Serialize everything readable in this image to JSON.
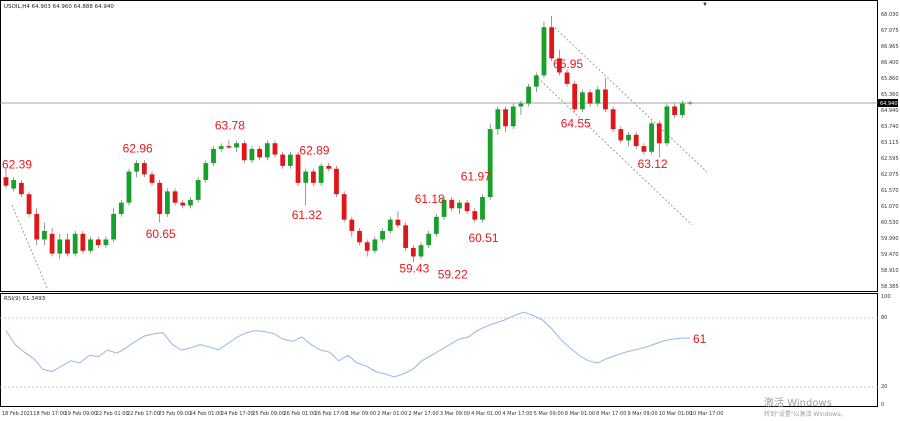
{
  "chart_header": "USOIL,H4  64.903 64.960 64.888 64.940",
  "rsi_header": "RSI(9) 61.3493",
  "current_price_label": "64.940",
  "rsi_value_label": "61",
  "price_axis": {
    "ticks": [
      "68.030",
      "67.075",
      "66.965",
      "66.400",
      "65.860",
      "65.360",
      "64.940",
      "63.740",
      "63.115",
      "62.595",
      "62.075",
      "61.570",
      "61.070",
      "60.530",
      "59.990",
      "59.470",
      "58.910",
      "58.385"
    ]
  },
  "rsi_axis": {
    "ticks": [
      "100",
      "80",
      "20",
      "0"
    ]
  },
  "time_axis": {
    "ticks": [
      "18 Feb 2021",
      "18 Feb 17:00",
      "19 Feb 09:00",
      "22 Feb 01:00",
      "22 Feb 17:00",
      "23 Feb 09:00",
      "24 Feb 01:00",
      "24 Feb 17:00",
      "25 Feb 09:00",
      "26 Feb 01:00",
      "26 Feb 17:00",
      "1 Mar 09:00",
      "2 Mar 01:00",
      "2 Mar 17:00",
      "3 Mar 09:00",
      "4 Mar 01:00",
      "4 Mar 17:00",
      "5 Mar 09:00",
      "8 Mar 01:00",
      "8 Mar 17:00",
      "9 Mar 09:00",
      "10 Mar 01:00",
      "10 Mar 17:00"
    ]
  },
  "annotations": [
    "62.39",
    "62.96",
    "60.65",
    "63.78",
    "61.32",
    "62.89",
    "59.43",
    "61.18",
    "59.22",
    "61.97",
    "60.51",
    "65.95",
    "64.55",
    "63.12"
  ],
  "watermark": {
    "line1": "激活 Windows",
    "line2": "转到\"设置\"以激活 Windows。"
  },
  "colors": {
    "bull": "#19a02a",
    "bear": "#e0161b",
    "rsi_line": "#8fb8e6",
    "annotation": "#e8191d"
  },
  "chart_data": {
    "type": "candlestick",
    "symbol": "USOIL",
    "timeframe": "H4",
    "ylim": [
      58.385,
      68.35
    ],
    "candles": [
      {
        "o": 62.3,
        "h": 62.6,
        "l": 61.9,
        "c": 62.0
      },
      {
        "o": 61.9,
        "h": 62.3,
        "l": 61.8,
        "c": 62.2
      },
      {
        "o": 62.1,
        "h": 62.2,
        "l": 61.6,
        "c": 61.7
      },
      {
        "o": 61.7,
        "h": 61.8,
        "l": 60.9,
        "c": 61.0
      },
      {
        "o": 61.0,
        "h": 61.2,
        "l": 59.9,
        "c": 60.1
      },
      {
        "o": 60.1,
        "h": 60.7,
        "l": 59.9,
        "c": 60.4
      },
      {
        "o": 60.3,
        "h": 60.5,
        "l": 59.5,
        "c": 59.6
      },
      {
        "o": 59.6,
        "h": 60.3,
        "l": 59.4,
        "c": 60.1
      },
      {
        "o": 60.1,
        "h": 60.3,
        "l": 59.5,
        "c": 59.6
      },
      {
        "o": 59.6,
        "h": 60.4,
        "l": 59.5,
        "c": 60.3
      },
      {
        "o": 60.3,
        "h": 60.4,
        "l": 59.6,
        "c": 59.7
      },
      {
        "o": 59.7,
        "h": 60.2,
        "l": 59.6,
        "c": 60.1
      },
      {
        "o": 60.1,
        "h": 60.2,
        "l": 59.8,
        "c": 59.9
      },
      {
        "o": 59.9,
        "h": 60.2,
        "l": 59.8,
        "c": 60.1
      },
      {
        "o": 60.1,
        "h": 61.2,
        "l": 60.0,
        "c": 61.0
      },
      {
        "o": 61.0,
        "h": 61.5,
        "l": 60.9,
        "c": 61.4
      },
      {
        "o": 61.4,
        "h": 62.6,
        "l": 61.3,
        "c": 62.5
      },
      {
        "o": 62.5,
        "h": 62.9,
        "l": 62.3,
        "c": 62.8
      },
      {
        "o": 62.8,
        "h": 62.9,
        "l": 62.3,
        "c": 62.4
      },
      {
        "o": 62.4,
        "h": 62.5,
        "l": 62.0,
        "c": 62.1
      },
      {
        "o": 62.1,
        "h": 62.2,
        "l": 60.7,
        "c": 61.0
      },
      {
        "o": 61.0,
        "h": 61.9,
        "l": 60.9,
        "c": 61.8
      },
      {
        "o": 61.8,
        "h": 61.9,
        "l": 61.3,
        "c": 61.4
      },
      {
        "o": 61.4,
        "h": 61.5,
        "l": 61.2,
        "c": 61.3
      },
      {
        "o": 61.3,
        "h": 61.6,
        "l": 61.2,
        "c": 61.5
      },
      {
        "o": 61.5,
        "h": 62.3,
        "l": 61.4,
        "c": 62.2
      },
      {
        "o": 62.2,
        "h": 62.9,
        "l": 62.1,
        "c": 62.8
      },
      {
        "o": 62.8,
        "h": 63.4,
        "l": 62.7,
        "c": 63.3
      },
      {
        "o": 63.3,
        "h": 63.5,
        "l": 63.2,
        "c": 63.4
      },
      {
        "o": 63.4,
        "h": 63.6,
        "l": 63.3,
        "c": 63.35
      },
      {
        "o": 63.35,
        "h": 63.6,
        "l": 63.2,
        "c": 63.5
      },
      {
        "o": 63.5,
        "h": 63.6,
        "l": 62.8,
        "c": 62.9
      },
      {
        "o": 62.9,
        "h": 63.4,
        "l": 62.8,
        "c": 63.3
      },
      {
        "o": 63.3,
        "h": 63.4,
        "l": 62.9,
        "c": 63.0
      },
      {
        "o": 63.0,
        "h": 63.6,
        "l": 62.9,
        "c": 63.5
      },
      {
        "o": 63.5,
        "h": 63.6,
        "l": 63.0,
        "c": 63.1
      },
      {
        "o": 63.1,
        "h": 63.2,
        "l": 62.6,
        "c": 62.7
      },
      {
        "o": 62.7,
        "h": 63.2,
        "l": 62.6,
        "c": 63.1
      },
      {
        "o": 63.1,
        "h": 63.2,
        "l": 62.0,
        "c": 62.1
      },
      {
        "o": 62.1,
        "h": 62.6,
        "l": 61.3,
        "c": 62.5
      },
      {
        "o": 62.5,
        "h": 62.6,
        "l": 62.0,
        "c": 62.1
      },
      {
        "o": 62.1,
        "h": 62.8,
        "l": 62.0,
        "c": 62.7
      },
      {
        "o": 62.7,
        "h": 62.8,
        "l": 62.5,
        "c": 62.6
      },
      {
        "o": 62.6,
        "h": 62.7,
        "l": 61.6,
        "c": 61.7
      },
      {
        "o": 61.7,
        "h": 61.8,
        "l": 60.7,
        "c": 60.8
      },
      {
        "o": 60.8,
        "h": 60.9,
        "l": 60.2,
        "c": 60.4
      },
      {
        "o": 60.4,
        "h": 60.5,
        "l": 59.9,
        "c": 60.0
      },
      {
        "o": 60.0,
        "h": 60.1,
        "l": 59.5,
        "c": 59.7
      },
      {
        "o": 59.7,
        "h": 60.2,
        "l": 59.6,
        "c": 60.1
      },
      {
        "o": 60.1,
        "h": 60.5,
        "l": 60.0,
        "c": 60.4
      },
      {
        "o": 60.4,
        "h": 60.9,
        "l": 60.3,
        "c": 60.8
      },
      {
        "o": 60.8,
        "h": 61.1,
        "l": 60.5,
        "c": 60.6
      },
      {
        "o": 60.6,
        "h": 60.7,
        "l": 59.7,
        "c": 59.8
      },
      {
        "o": 59.8,
        "h": 59.9,
        "l": 59.3,
        "c": 59.5
      },
      {
        "o": 59.5,
        "h": 60.0,
        "l": 59.4,
        "c": 59.9
      },
      {
        "o": 59.9,
        "h": 60.4,
        "l": 59.8,
        "c": 60.3
      },
      {
        "o": 60.3,
        "h": 61.0,
        "l": 60.2,
        "c": 60.9
      },
      {
        "o": 60.9,
        "h": 61.6,
        "l": 60.8,
        "c": 61.5
      },
      {
        "o": 61.5,
        "h": 61.6,
        "l": 61.1,
        "c": 61.2
      },
      {
        "o": 61.2,
        "h": 61.5,
        "l": 61.0,
        "c": 61.4
      },
      {
        "o": 61.4,
        "h": 61.5,
        "l": 61.0,
        "c": 61.1
      },
      {
        "o": 61.1,
        "h": 61.2,
        "l": 60.7,
        "c": 60.8
      },
      {
        "o": 60.8,
        "h": 61.7,
        "l": 60.7,
        "c": 61.6
      },
      {
        "o": 61.6,
        "h": 64.2,
        "l": 61.5,
        "c": 64.0
      },
      {
        "o": 64.0,
        "h": 64.8,
        "l": 63.8,
        "c": 64.7
      },
      {
        "o": 64.7,
        "h": 64.8,
        "l": 63.9,
        "c": 64.1
      },
      {
        "o": 64.1,
        "h": 64.9,
        "l": 64.0,
        "c": 64.8
      },
      {
        "o": 64.8,
        "h": 65.0,
        "l": 64.5,
        "c": 64.9
      },
      {
        "o": 64.9,
        "h": 65.6,
        "l": 64.8,
        "c": 65.5
      },
      {
        "o": 65.5,
        "h": 66.0,
        "l": 65.3,
        "c": 65.9
      },
      {
        "o": 65.9,
        "h": 67.8,
        "l": 65.8,
        "c": 67.6
      },
      {
        "o": 67.6,
        "h": 68.0,
        "l": 66.4,
        "c": 66.5
      },
      {
        "o": 66.5,
        "h": 66.8,
        "l": 65.9,
        "c": 66.0
      },
      {
        "o": 66.0,
        "h": 66.1,
        "l": 65.5,
        "c": 65.6
      },
      {
        "o": 65.6,
        "h": 65.7,
        "l": 64.6,
        "c": 64.7
      },
      {
        "o": 64.7,
        "h": 65.4,
        "l": 64.6,
        "c": 65.3
      },
      {
        "o": 65.3,
        "h": 65.4,
        "l": 64.8,
        "c": 64.9
      },
      {
        "o": 64.9,
        "h": 65.5,
        "l": 64.8,
        "c": 65.4
      },
      {
        "o": 65.4,
        "h": 65.8,
        "l": 64.6,
        "c": 64.7
      },
      {
        "o": 64.7,
        "h": 64.8,
        "l": 63.9,
        "c": 64.0
      },
      {
        "o": 64.0,
        "h": 64.1,
        "l": 63.5,
        "c": 63.6
      },
      {
        "o": 63.6,
        "h": 63.9,
        "l": 63.4,
        "c": 63.8
      },
      {
        "o": 63.8,
        "h": 63.9,
        "l": 63.3,
        "c": 63.4
      },
      {
        "o": 63.4,
        "h": 63.5,
        "l": 63.1,
        "c": 63.2
      },
      {
        "o": 63.2,
        "h": 64.3,
        "l": 63.1,
        "c": 64.2
      },
      {
        "o": 64.2,
        "h": 64.3,
        "l": 63.0,
        "c": 63.5
      },
      {
        "o": 63.5,
        "h": 64.9,
        "l": 63.4,
        "c": 64.8
      },
      {
        "o": 64.8,
        "h": 64.9,
        "l": 64.4,
        "c": 64.5
      },
      {
        "o": 64.5,
        "h": 65.0,
        "l": 64.4,
        "c": 64.9
      },
      {
        "o": 64.9,
        "h": 65.0,
        "l": 64.85,
        "c": 64.94
      }
    ],
    "rsi": [
      68,
      55,
      48,
      42,
      32,
      30,
      35,
      40,
      38,
      45,
      44,
      50,
      47,
      52,
      58,
      63,
      65,
      66,
      55,
      50,
      52,
      55,
      53,
      50,
      56,
      62,
      66,
      68,
      67,
      65,
      60,
      58,
      62,
      55,
      50,
      48,
      40,
      45,
      38,
      35,
      30,
      28,
      25,
      28,
      32,
      40,
      45,
      50,
      55,
      60,
      62,
      68,
      72,
      75,
      78,
      82,
      85,
      82,
      78,
      70,
      60,
      52,
      45,
      40,
      38,
      42,
      45,
      48,
      50,
      52,
      55,
      58,
      60,
      61,
      61
    ],
    "annotations": [
      {
        "label": "62.39",
        "i": 0
      },
      {
        "label": "62.96",
        "i": 17
      },
      {
        "label": "60.65",
        "i": 20
      },
      {
        "label": "63.78",
        "i": 29
      },
      {
        "label": "61.32",
        "i": 39
      },
      {
        "label": "62.89",
        "i": 40
      },
      {
        "label": "59.43",
        "i": 53
      },
      {
        "label": "61.18",
        "i": 55
      },
      {
        "label": "59.22",
        "i": 58
      },
      {
        "label": "61.97",
        "i": 61
      },
      {
        "label": "60.51",
        "i": 62
      },
      {
        "label": "65.95",
        "i": 73
      },
      {
        "label": "64.55",
        "i": 74
      },
      {
        "label": "63.12",
        "i": 84
      }
    ]
  }
}
